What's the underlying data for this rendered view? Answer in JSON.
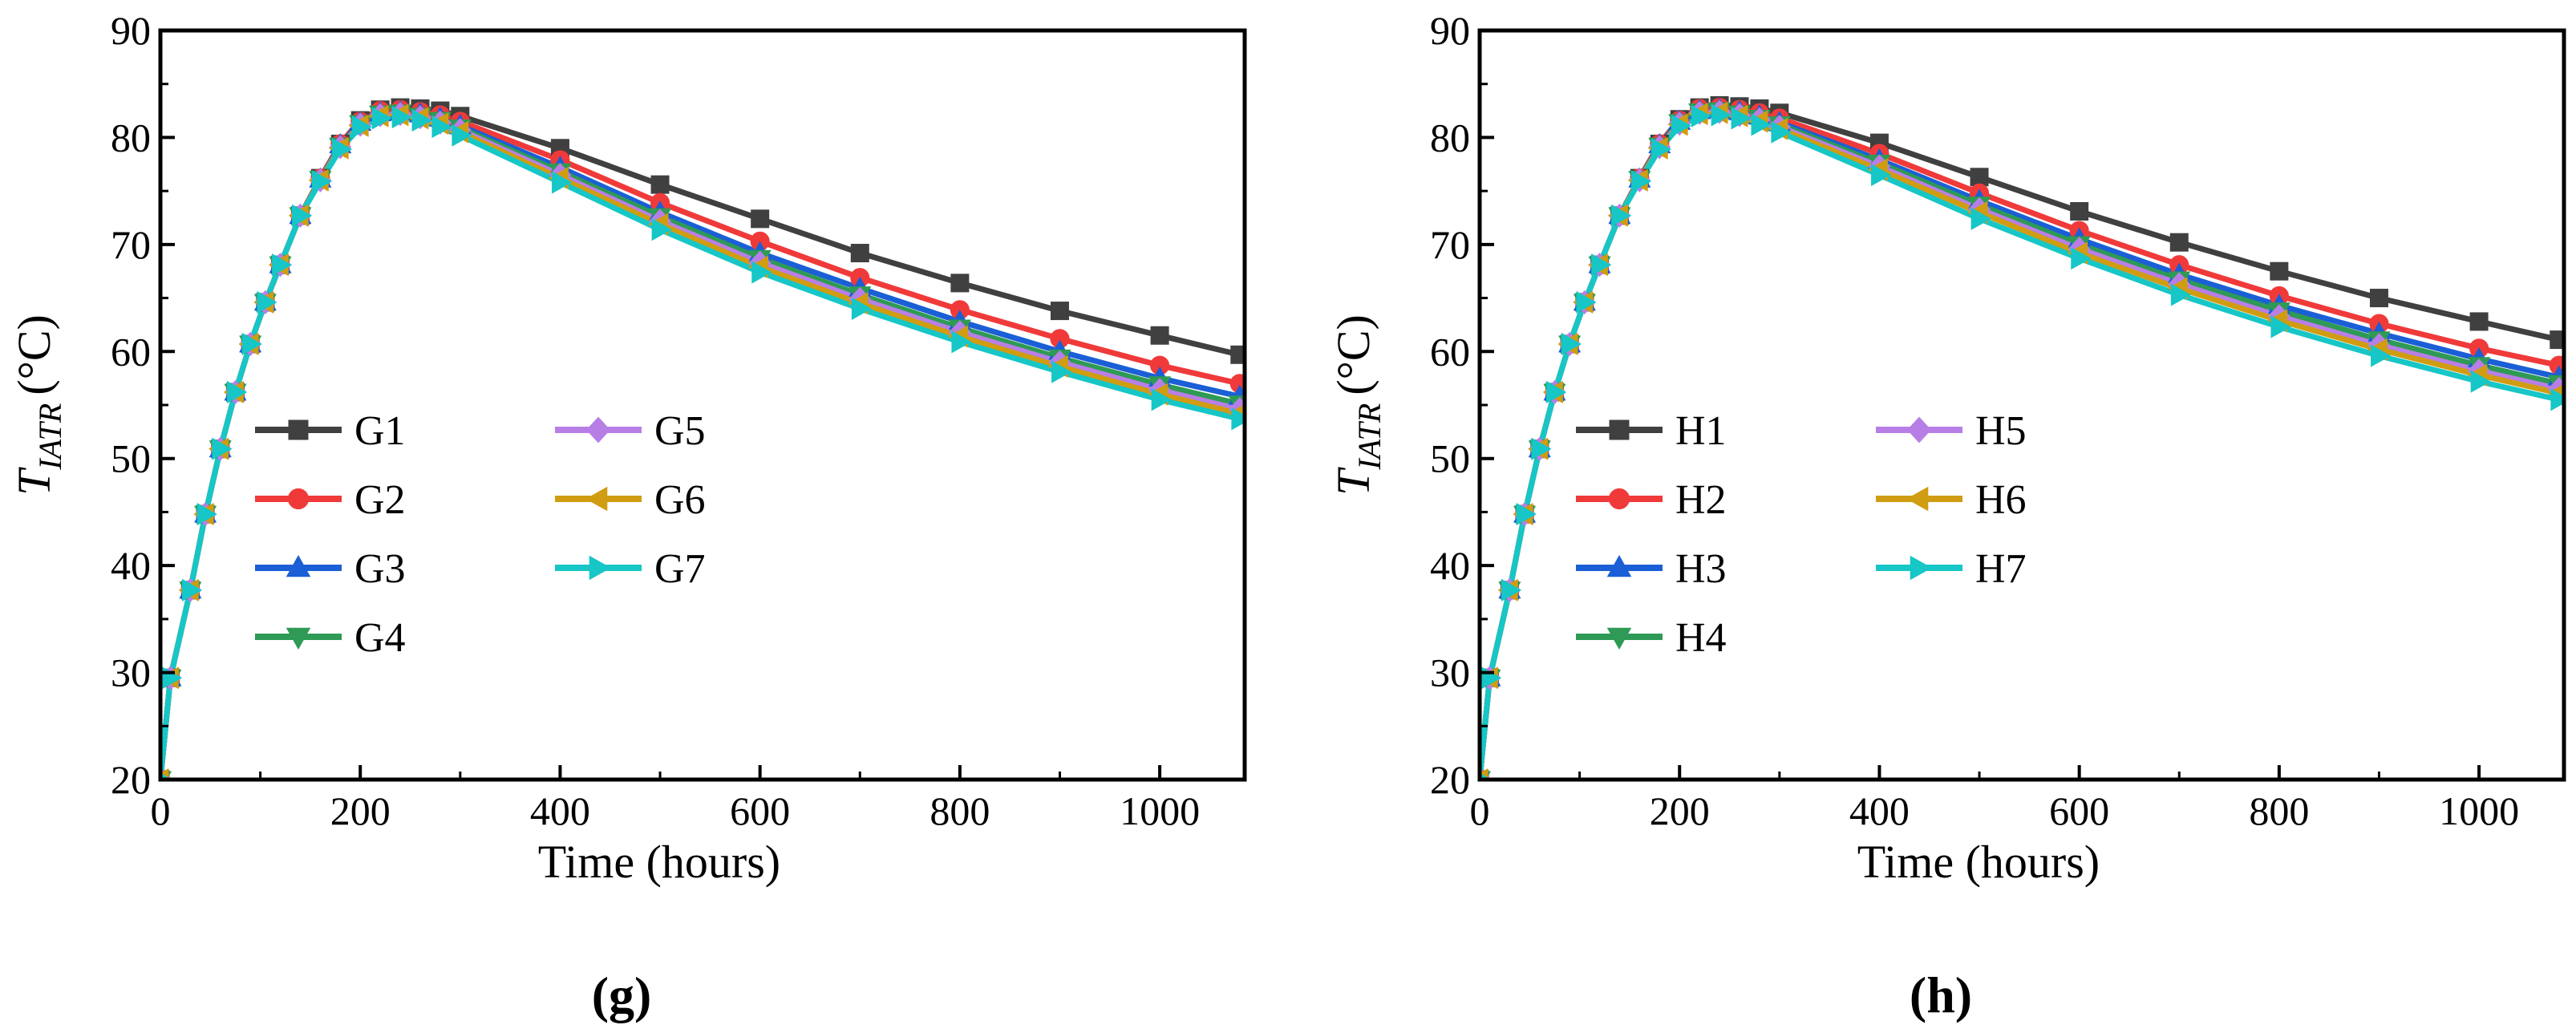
{
  "chart_data": [
    {
      "type": "line",
      "panel_label": "g",
      "xlabel": "Time (hours)",
      "ylabel_main": "T",
      "ylabel_sub": "IATR",
      "ylabel_unit": "(°C)",
      "xlim": [
        0,
        1085
      ],
      "ylim": [
        20,
        90
      ],
      "xticks": [
        0,
        200,
        400,
        600,
        800,
        1000
      ],
      "yticks": [
        20,
        30,
        40,
        50,
        60,
        70,
        80,
        90
      ],
      "legend_position": "center-left",
      "x": [
        0,
        10,
        30,
        45,
        60,
        75,
        90,
        105,
        120,
        140,
        160,
        180,
        200,
        220,
        240,
        260,
        280,
        300,
        400,
        500,
        600,
        700,
        800,
        900,
        1000,
        1080
      ],
      "series": [
        {
          "name": "G1",
          "color": "#404040",
          "marker": "square",
          "values": [
            20,
            29.5,
            37.7,
            44.8,
            50.9,
            56.2,
            60.7,
            64.6,
            68.1,
            72.7,
            76.2,
            79.4,
            81.6,
            82.6,
            82.8,
            82.7,
            82.5,
            82.0,
            79.0,
            75.6,
            72.4,
            69.2,
            66.4,
            63.8,
            61.5,
            59.7
          ]
        },
        {
          "name": "G2",
          "color": "#f03a3a",
          "marker": "circle",
          "values": [
            20,
            29.5,
            37.7,
            44.8,
            50.9,
            56.2,
            60.7,
            64.6,
            68.1,
            72.7,
            76.2,
            79.4,
            81.5,
            82.5,
            82.6,
            82.4,
            82.1,
            81.5,
            77.9,
            73.9,
            70.3,
            66.9,
            63.9,
            61.2,
            58.7,
            57.0
          ]
        },
        {
          "name": "G3",
          "color": "#1a5fd6",
          "marker": "triangle-up",
          "values": [
            20,
            29.5,
            37.7,
            44.8,
            50.9,
            56.2,
            60.7,
            64.6,
            68.1,
            72.7,
            76.1,
            79.3,
            81.4,
            82.3,
            82.4,
            82.2,
            81.8,
            81.1,
            77.2,
            73.0,
            69.2,
            65.9,
            62.8,
            60.0,
            57.5,
            55.8
          ]
        },
        {
          "name": "G4",
          "color": "#2e9a55",
          "marker": "triangle-down",
          "values": [
            20,
            29.5,
            37.7,
            44.8,
            50.9,
            56.2,
            60.7,
            64.6,
            68.1,
            72.7,
            76.1,
            79.2,
            81.3,
            82.2,
            82.3,
            82.0,
            81.6,
            80.9,
            76.8,
            72.6,
            68.7,
            65.3,
            62.2,
            59.4,
            56.9,
            55.1
          ]
        },
        {
          "name": "G5",
          "color": "#b77fe6",
          "marker": "diamond",
          "values": [
            20,
            29.5,
            37.7,
            44.8,
            50.9,
            56.2,
            60.7,
            64.6,
            68.1,
            72.7,
            76.0,
            79.1,
            81.2,
            82.1,
            82.2,
            81.9,
            81.4,
            80.7,
            76.5,
            72.2,
            68.3,
            64.9,
            61.8,
            59.0,
            56.4,
            54.6
          ]
        },
        {
          "name": "G6",
          "color": "#d09c12",
          "marker": "triangle-left",
          "values": [
            20,
            29.5,
            37.7,
            44.8,
            50.9,
            56.2,
            60.7,
            64.6,
            68.1,
            72.7,
            76.0,
            79.0,
            81.1,
            82.0,
            82.1,
            81.8,
            81.3,
            80.5,
            76.2,
            71.9,
            67.9,
            64.5,
            61.4,
            58.6,
            56.0,
            54.2
          ]
        },
        {
          "name": "G7",
          "color": "#17c6c6",
          "marker": "triangle-right",
          "values": [
            20,
            29.5,
            37.7,
            44.8,
            50.9,
            56.2,
            60.7,
            64.6,
            68.1,
            72.7,
            75.9,
            78.9,
            81.0,
            81.8,
            81.9,
            81.6,
            81.0,
            80.2,
            75.8,
            71.4,
            67.4,
            64.0,
            60.9,
            58.1,
            55.5,
            53.7
          ]
        }
      ]
    },
    {
      "type": "line",
      "panel_label": "h",
      "xlabel": "Time (hours)",
      "ylabel_main": "T",
      "ylabel_sub": "IATR",
      "ylabel_unit": "(°C)",
      "xlim": [
        0,
        1085
      ],
      "ylim": [
        20,
        90
      ],
      "xticks": [
        0,
        200,
        400,
        600,
        800,
        1000
      ],
      "yticks": [
        20,
        30,
        40,
        50,
        60,
        70,
        80,
        90
      ],
      "legend_position": "center-left",
      "x": [
        0,
        10,
        30,
        45,
        60,
        75,
        90,
        105,
        120,
        140,
        160,
        180,
        200,
        220,
        240,
        260,
        280,
        300,
        400,
        500,
        600,
        700,
        800,
        900,
        1000,
        1080
      ],
      "series": [
        {
          "name": "H1",
          "color": "#404040",
          "marker": "square",
          "values": [
            20,
            29.5,
            37.7,
            44.8,
            50.9,
            56.2,
            60.7,
            64.6,
            68.1,
            72.7,
            76.2,
            79.4,
            81.7,
            82.8,
            83.0,
            82.9,
            82.7,
            82.3,
            79.5,
            76.3,
            73.1,
            70.2,
            67.5,
            65.0,
            62.8,
            61.1
          ]
        },
        {
          "name": "H2",
          "color": "#f03a3a",
          "marker": "circle",
          "values": [
            20,
            29.5,
            37.7,
            44.8,
            50.9,
            56.2,
            60.7,
            64.6,
            68.1,
            72.7,
            76.2,
            79.4,
            81.6,
            82.7,
            82.8,
            82.6,
            82.3,
            81.8,
            78.5,
            74.8,
            71.3,
            68.1,
            65.2,
            62.6,
            60.3,
            58.7
          ]
        },
        {
          "name": "H3",
          "color": "#1a5fd6",
          "marker": "triangle-up",
          "values": [
            20,
            29.5,
            37.7,
            44.8,
            50.9,
            56.2,
            60.7,
            64.6,
            68.1,
            72.7,
            76.1,
            79.3,
            81.5,
            82.5,
            82.6,
            82.4,
            82.0,
            81.4,
            77.9,
            74.1,
            70.5,
            67.2,
            64.3,
            61.7,
            59.3,
            57.6
          ]
        },
        {
          "name": "H4",
          "color": "#2e9a55",
          "marker": "triangle-down",
          "values": [
            20,
            29.5,
            37.7,
            44.8,
            50.9,
            56.2,
            60.7,
            64.6,
            68.1,
            72.7,
            76.1,
            79.2,
            81.4,
            82.4,
            82.5,
            82.2,
            81.8,
            81.2,
            77.6,
            73.7,
            70.0,
            66.7,
            63.8,
            61.1,
            58.7,
            57.0
          ]
        },
        {
          "name": "H5",
          "color": "#b77fe6",
          "marker": "diamond",
          "values": [
            20,
            29.5,
            37.7,
            44.8,
            50.9,
            56.2,
            60.7,
            64.6,
            68.1,
            72.7,
            76.0,
            79.1,
            81.3,
            82.3,
            82.4,
            82.1,
            81.7,
            81.0,
            77.3,
            73.3,
            69.6,
            66.3,
            63.3,
            60.6,
            58.2,
            56.5
          ]
        },
        {
          "name": "H6",
          "color": "#d09c12",
          "marker": "triangle-left",
          "values": [
            20,
            29.5,
            37.7,
            44.8,
            50.9,
            56.2,
            60.7,
            64.6,
            68.1,
            72.7,
            76.0,
            79.0,
            81.2,
            82.2,
            82.3,
            82.0,
            81.5,
            80.8,
            77.0,
            73.0,
            69.2,
            65.9,
            62.9,
            60.2,
            57.8,
            56.1
          ]
        },
        {
          "name": "H7",
          "color": "#17c6c6",
          "marker": "triangle-right",
          "values": [
            20,
            29.5,
            37.7,
            44.8,
            50.9,
            56.2,
            60.7,
            64.6,
            68.1,
            72.7,
            75.9,
            78.9,
            81.1,
            82.0,
            82.1,
            81.8,
            81.2,
            80.5,
            76.5,
            72.4,
            68.7,
            65.3,
            62.3,
            59.6,
            57.2,
            55.5
          ]
        }
      ]
    }
  ]
}
